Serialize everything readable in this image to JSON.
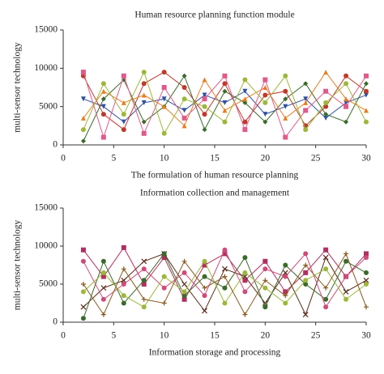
{
  "chart_data": [
    {
      "type": "line",
      "title": "Human resource planning function module",
      "x_label": "The formulation of human resource planning",
      "y_label": "multi-sensor technology",
      "x": [
        2,
        4,
        6,
        8,
        10,
        12,
        14,
        16,
        18,
        20,
        22,
        24,
        26,
        28,
        30
      ],
      "xlim": [
        0,
        30
      ],
      "xticks": [
        0,
        5,
        10,
        15,
        20,
        25,
        30
      ],
      "ylim": [
        0,
        15000
      ],
      "yticks": [
        0,
        5000,
        10000,
        15000
      ],
      "series": [
        {
          "color": "#3050a0",
          "marker": "triangle-down",
          "values": [
            6000,
            5000,
            3000,
            5500,
            6000,
            4500,
            6500,
            5500,
            7000,
            4000,
            5000,
            6000,
            3500,
            5500,
            6500
          ]
        },
        {
          "color": "#c0392b",
          "marker": "circle",
          "values": [
            9000,
            4000,
            2000,
            8000,
            9500,
            7500,
            4000,
            8000,
            3000,
            6500,
            7000,
            2500,
            5000,
            9000,
            7000
          ]
        },
        {
          "color": "#3a6b2a",
          "marker": "diamond",
          "values": [
            500,
            6000,
            8500,
            3000,
            5000,
            9000,
            2000,
            7000,
            5500,
            3000,
            6000,
            8000,
            4000,
            3000,
            8000
          ]
        },
        {
          "color": "#e67e22",
          "marker": "triangle",
          "values": [
            3500,
            7000,
            5500,
            6500,
            5000,
            2500,
            8500,
            4500,
            6000,
            7500,
            3500,
            5500,
            9500,
            6000,
            4500
          ]
        },
        {
          "color": "#e05a8a",
          "marker": "square",
          "values": [
            9500,
            1000,
            9000,
            1500,
            7500,
            3500,
            6000,
            9000,
            2000,
            8500,
            1000,
            4500,
            7000,
            5000,
            9000
          ]
        },
        {
          "color": "#9cb83a",
          "marker": "circle",
          "values": [
            2000,
            8000,
            4000,
            9500,
            1500,
            6000,
            5000,
            3000,
            8500,
            5500,
            9000,
            2000,
            5500,
            8000,
            3000
          ]
        }
      ]
    },
    {
      "type": "line",
      "title": "Information collection and management",
      "x_label": "Information storage and processing",
      "y_label": "multi-sensor technology",
      "x": [
        2,
        4,
        6,
        8,
        10,
        12,
        14,
        16,
        18,
        20,
        22,
        24,
        26,
        28,
        30
      ],
      "xlim": [
        0,
        30
      ],
      "xticks": [
        0,
        5,
        10,
        15,
        20,
        25,
        30
      ],
      "ylim": [
        0,
        15000
      ],
      "yticks": [
        0,
        5000,
        10000,
        15000
      ],
      "series": [
        {
          "color": "#b03060",
          "marker": "square",
          "values": [
            9500,
            6000,
            9800,
            5000,
            8500,
            3000,
            7500,
            9000,
            5500,
            8000,
            4000,
            6500,
            9500,
            6000,
            9000
          ]
        },
        {
          "color": "#5a2a1a",
          "marker": "x",
          "values": [
            2000,
            4500,
            5500,
            8000,
            9000,
            5000,
            1500,
            7000,
            6000,
            2500,
            6500,
            1000,
            8500,
            4000,
            5500
          ]
        },
        {
          "color": "#3a6b2a",
          "marker": "circle",
          "values": [
            500,
            8000,
            2500,
            5500,
            9000,
            3500,
            6000,
            4500,
            8500,
            2000,
            7500,
            5000,
            3000,
            8000,
            6500
          ]
        },
        {
          "color": "#d04a7a",
          "marker": "circle",
          "values": [
            8000,
            3000,
            5000,
            7000,
            4500,
            6500,
            3500,
            9500,
            4000,
            7000,
            6000,
            9000,
            2000,
            6000,
            8500
          ]
        },
        {
          "color": "#9cb83a",
          "marker": "circle",
          "values": [
            4000,
            6500,
            3500,
            2000,
            6000,
            4000,
            8000,
            2500,
            6500,
            4500,
            2500,
            5500,
            7000,
            3000,
            5000
          ]
        },
        {
          "color": "#8a5a20",
          "marker": "plus",
          "values": [
            5000,
            1000,
            7000,
            3000,
            2500,
            8000,
            4500,
            6000,
            1000,
            5500,
            3500,
            7500,
            4500,
            9000,
            2000
          ]
        }
      ]
    }
  ]
}
